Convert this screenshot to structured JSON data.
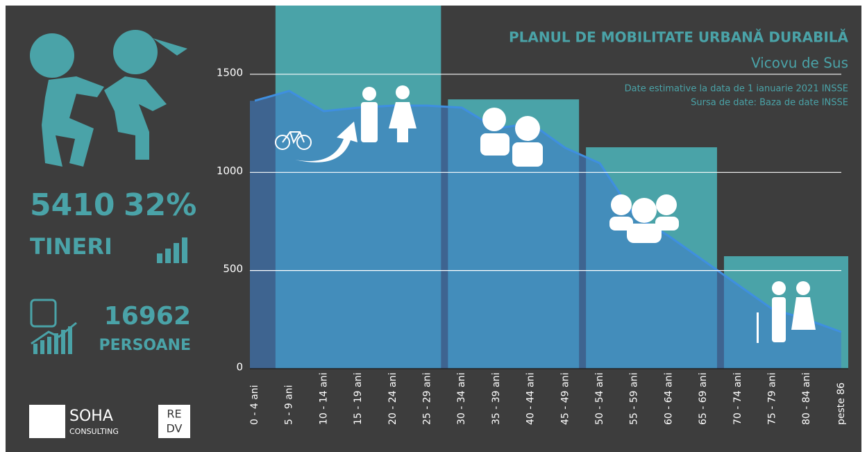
{
  "chart_data": {
    "type": "area",
    "title": "PLANUL DE MOBILITATE URBANĂ DURABILĂ",
    "subtitle": "Vicovu de Sus",
    "notes": [
      "Date estimative la data de 1 ianuarie 2021 INSSE",
      "Sursa de date: Baza de date INSSE"
    ],
    "categories": [
      "0 - 4 ani",
      "5 - 9 ani",
      "10 - 14 ani",
      "15 - 19 ani",
      "20 - 24 ani",
      "25 - 29 ani",
      "30 - 34 ani",
      "35 - 39 ani",
      "40 - 44 ani",
      "45 - 49 ani",
      "50 - 54 ani",
      "55 - 59 ani",
      "60 - 64 ani",
      "65 - 69 ani",
      "70 - 74 ani",
      "75 - 79 ani",
      "80 - 84 ani",
      "peste 86"
    ],
    "values": [
      1365,
      1415,
      1312,
      1330,
      1340,
      1340,
      1330,
      1224,
      1250,
      1125,
      1047,
      782,
      676,
      552,
      428,
      304,
      251,
      187
    ],
    "color": "#3f8fe0",
    "group_bars": {
      "values": [
        1850,
        1372,
        1128,
        573
      ],
      "color": "#4aa3a8"
    },
    "ylim": [
      0,
      1850
    ],
    "yticks": [
      0,
      500,
      1000,
      1500
    ],
    "grid": true
  },
  "side_panel": {
    "young_count": "5410",
    "young_share": "32%",
    "young_label": "TINERI",
    "population": "16962",
    "population_label": "PERSOANE",
    "logo_name": "SOHA",
    "logo_sub": "CONSULTING",
    "logo2_top": "RE",
    "logo2_bottom": "DV"
  }
}
